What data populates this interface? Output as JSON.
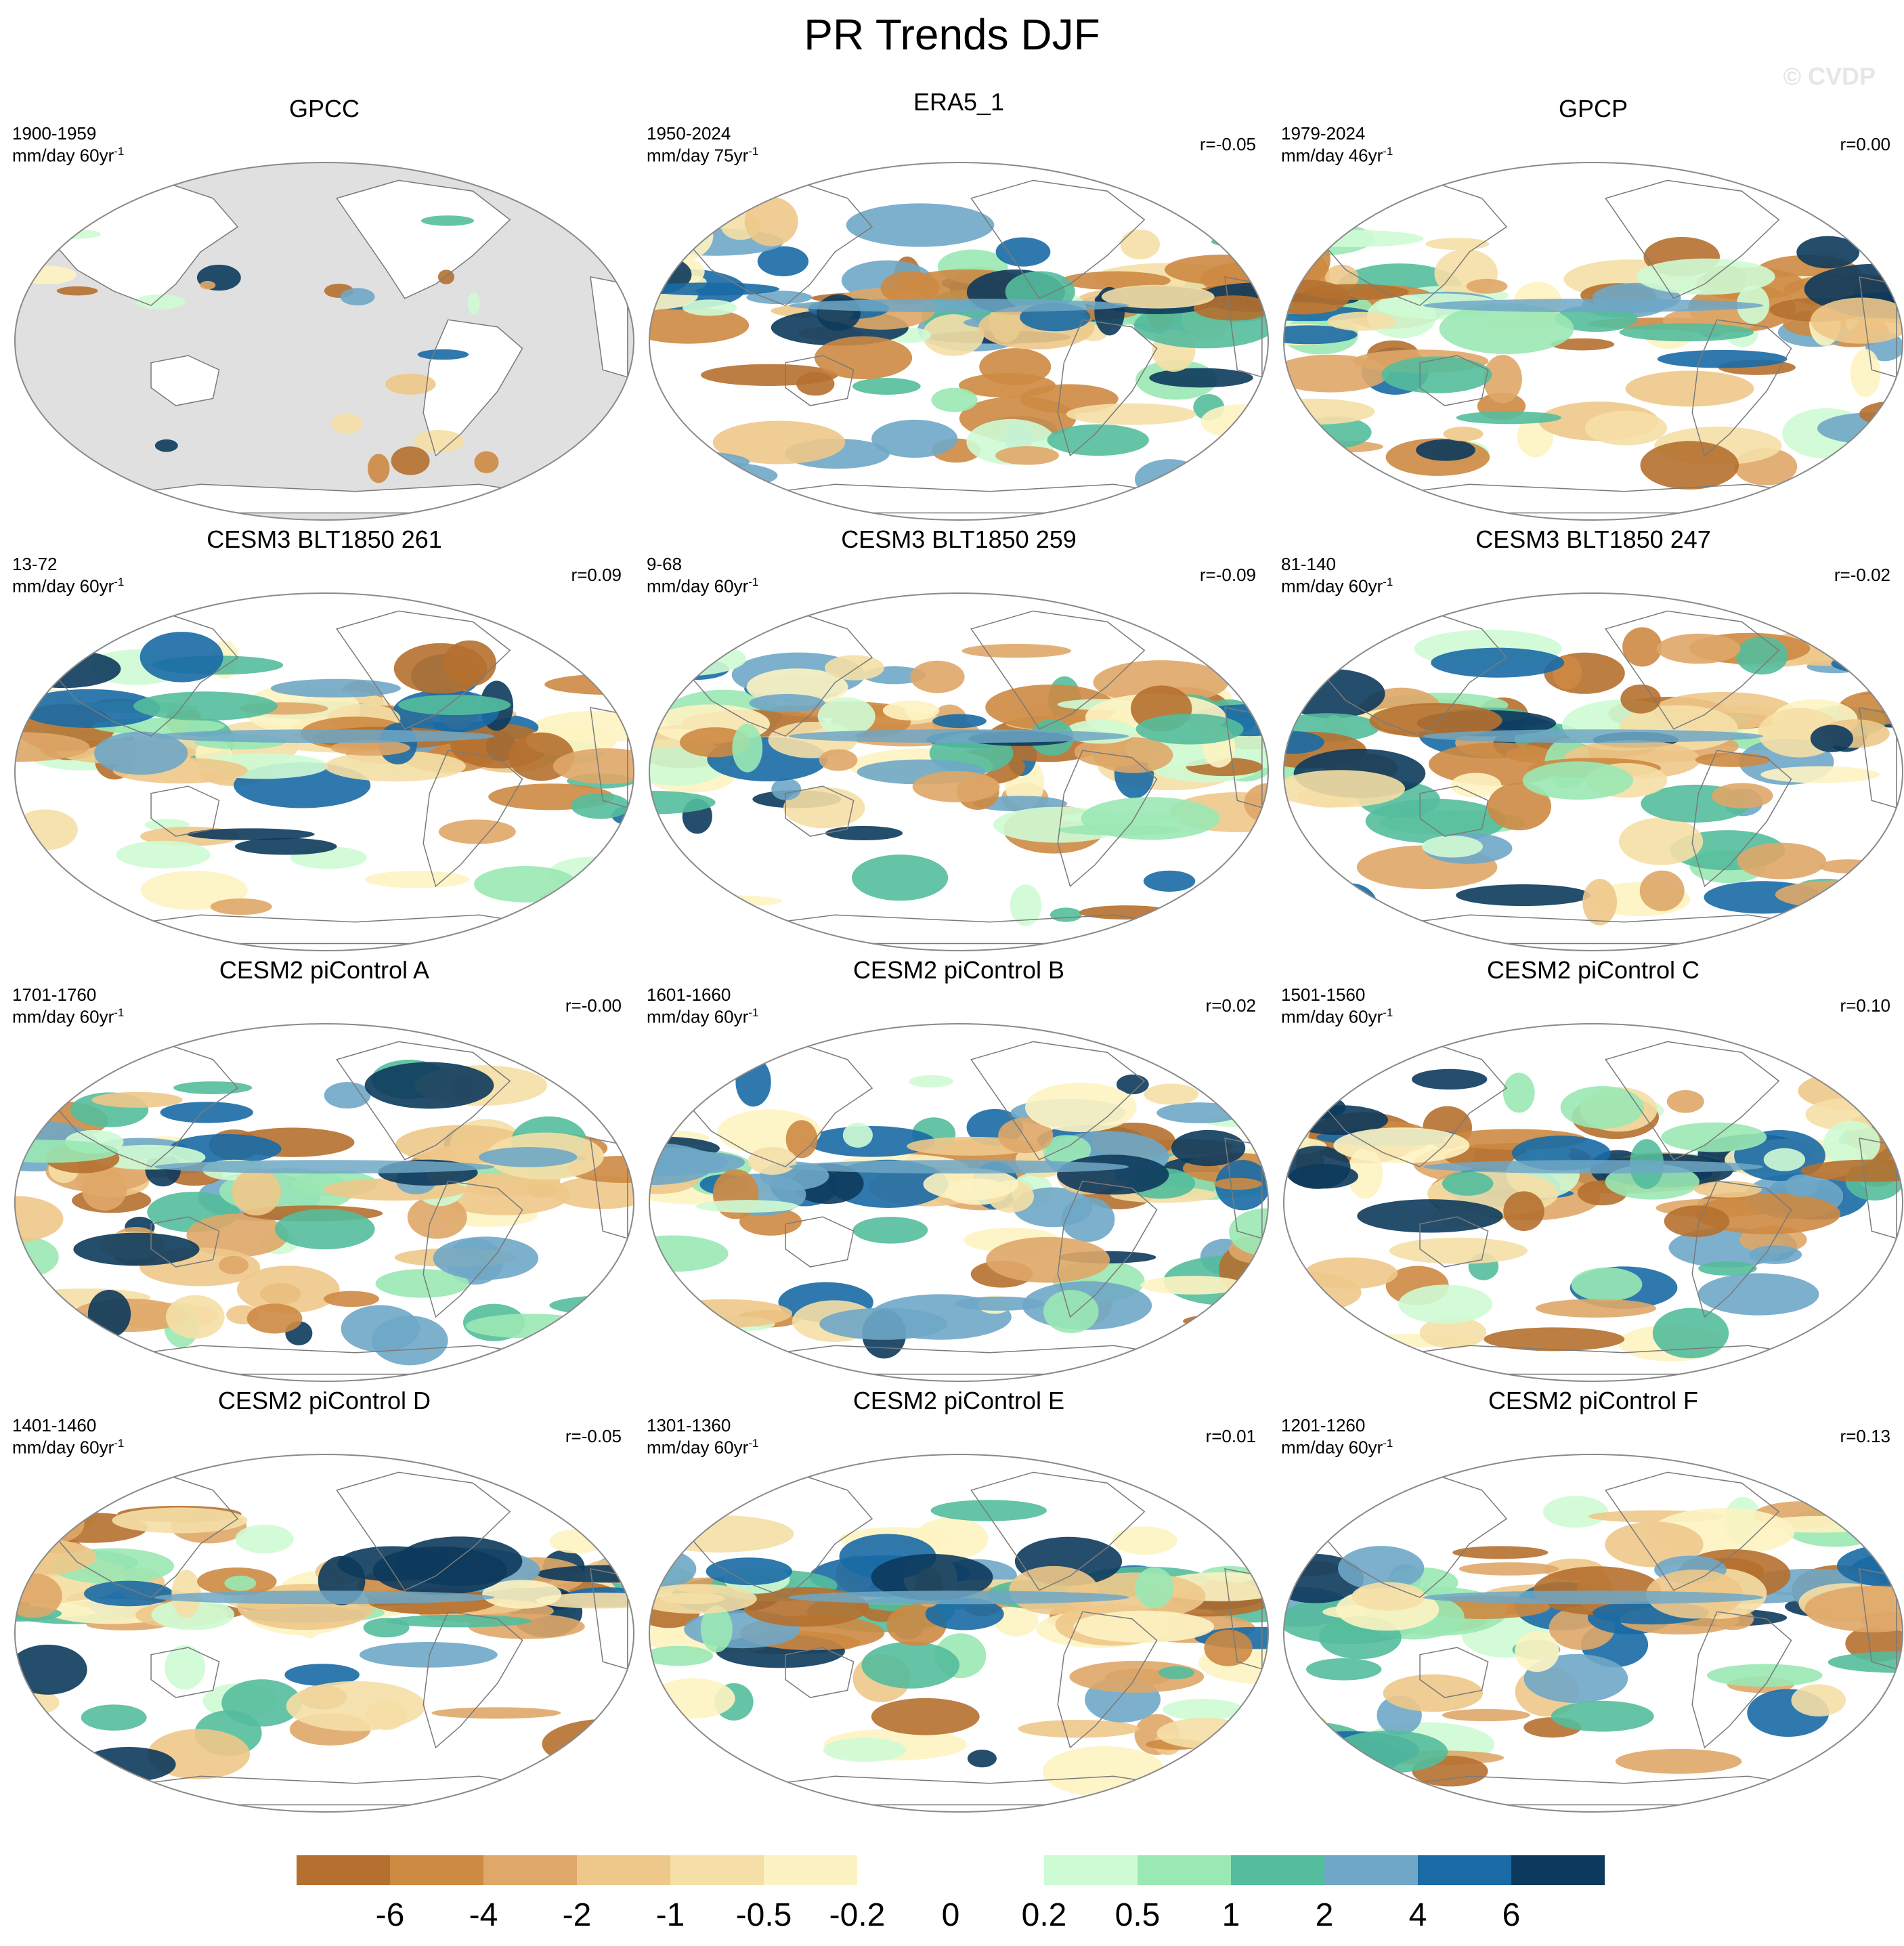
{
  "page": {
    "title": "PR Trends DJF",
    "watermark": "© CVDP"
  },
  "chart_data": [
    {
      "type": "contour-map",
      "title": "GPCC",
      "period": "1900-1959",
      "units": "mm/day 60yr",
      "units_exp": "-1",
      "correlation": "",
      "observed": true,
      "land_only": true,
      "seed": 3
    },
    {
      "type": "contour-map",
      "title": "ERA5_1",
      "period": "1950-2024",
      "units": "mm/day 75yr",
      "units_exp": "-1",
      "correlation": "r=-0.05",
      "observed": true,
      "seed": 11
    },
    {
      "type": "contour-map",
      "title": "GPCP",
      "period": "1979-2024",
      "units": "mm/day 46yr",
      "units_exp": "-1",
      "correlation": "r=0.00",
      "observed": true,
      "seed": 17
    },
    {
      "type": "contour-map",
      "title": "CESM3 BLT1850 261",
      "period": "13-72",
      "units": "mm/day 60yr",
      "units_exp": "-1",
      "correlation": "r=0.09",
      "seed": 23
    },
    {
      "type": "contour-map",
      "title": "CESM3 BLT1850 259",
      "period": "9-68",
      "units": "mm/day 60yr",
      "units_exp": "-1",
      "correlation": "r=-0.09",
      "seed": 29
    },
    {
      "type": "contour-map",
      "title": "CESM3 BLT1850 247",
      "period": "81-140",
      "units": "mm/day 60yr",
      "units_exp": "-1",
      "correlation": "r=-0.02",
      "seed": 31
    },
    {
      "type": "contour-map",
      "title": "CESM2 piControl A",
      "period": "1701-1760",
      "units": "mm/day 60yr",
      "units_exp": "-1",
      "correlation": "r=-0.00",
      "seed": 37
    },
    {
      "type": "contour-map",
      "title": "CESM2 piControl B",
      "period": "1601-1660",
      "units": "mm/day 60yr",
      "units_exp": "-1",
      "correlation": "r=0.02",
      "seed": 41
    },
    {
      "type": "contour-map",
      "title": "CESM2 piControl C",
      "period": "1501-1560",
      "units": "mm/day 60yr",
      "units_exp": "-1",
      "correlation": "r=0.10",
      "seed": 43
    },
    {
      "type": "contour-map",
      "title": "CESM2 piControl D",
      "period": "1401-1460",
      "units": "mm/day 60yr",
      "units_exp": "-1",
      "correlation": "r=-0.05",
      "seed": 47
    },
    {
      "type": "contour-map",
      "title": "CESM2 piControl E",
      "period": "1301-1360",
      "units": "mm/day 60yr",
      "units_exp": "-1",
      "correlation": "r=0.01",
      "seed": 53
    },
    {
      "type": "contour-map",
      "title": "CESM2 piControl F",
      "period": "1201-1260",
      "units": "mm/day 60yr",
      "units_exp": "-1",
      "correlation": "r=0.13",
      "seed": 59
    }
  ],
  "colorbar": {
    "levels": [
      "-6",
      "-4",
      "-2",
      "-1",
      "-0.5",
      "-0.2",
      "0",
      "0.2",
      "0.5",
      "1",
      "2",
      "4",
      "6"
    ],
    "colors": [
      "#b5702f",
      "#cd8a43",
      "#dfa768",
      "#eec88a",
      "#f5dfa6",
      "#fdf3c2",
      "#ffffff",
      "#ffffff",
      "#cffbd4",
      "#9ae8b4",
      "#54bd9c",
      "#6fa7c6",
      "#1a6aa5",
      "#0d3a5c"
    ]
  }
}
